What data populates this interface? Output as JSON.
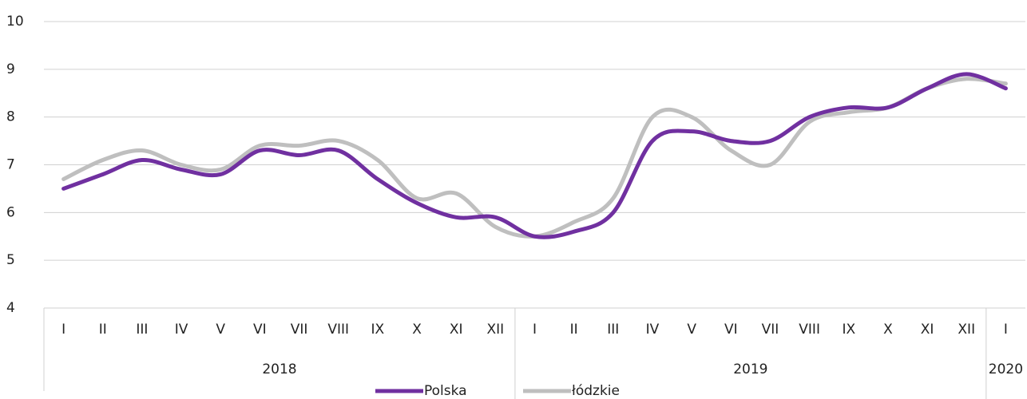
{
  "chart_data": {
    "type": "line",
    "category_groups": [
      {
        "label": "2018",
        "categories": [
          "I",
          "II",
          "III",
          "IV",
          "V",
          "VI",
          "VII",
          "VIII",
          "IX",
          "X",
          "XI",
          "XII"
        ]
      },
      {
        "label": "2019",
        "categories": [
          "I",
          "II",
          "III",
          "IV",
          "V",
          "VI",
          "VII",
          "VIII",
          "IX",
          "X",
          "XI",
          "XII"
        ]
      },
      {
        "label": "2020",
        "categories": [
          "I"
        ]
      }
    ],
    "series": [
      {
        "name": "Polska",
        "color": "#7030a0",
        "values": [
          6.5,
          6.8,
          7.1,
          6.9,
          6.8,
          7.3,
          7.2,
          7.3,
          6.7,
          6.2,
          5.9,
          5.9,
          5.5,
          5.6,
          6.0,
          7.5,
          7.7,
          7.5,
          7.5,
          8.0,
          8.2,
          8.2,
          8.6,
          8.9,
          8.6
        ]
      },
      {
        "name": "łódzkie",
        "color": "#bfbfbf",
        "values": [
          6.7,
          7.1,
          7.3,
          7.0,
          6.9,
          7.4,
          7.4,
          7.5,
          7.1,
          6.3,
          6.4,
          5.7,
          5.5,
          5.8,
          6.3,
          8.0,
          8.0,
          7.3,
          7.0,
          7.9,
          8.1,
          8.2,
          8.6,
          8.8,
          8.7
        ]
      }
    ],
    "ylim": [
      4,
      10
    ],
    "yticks": [
      4,
      5,
      6,
      7,
      8,
      9,
      10
    ],
    "grid": true,
    "legend": "bottom",
    "smooth": true
  }
}
